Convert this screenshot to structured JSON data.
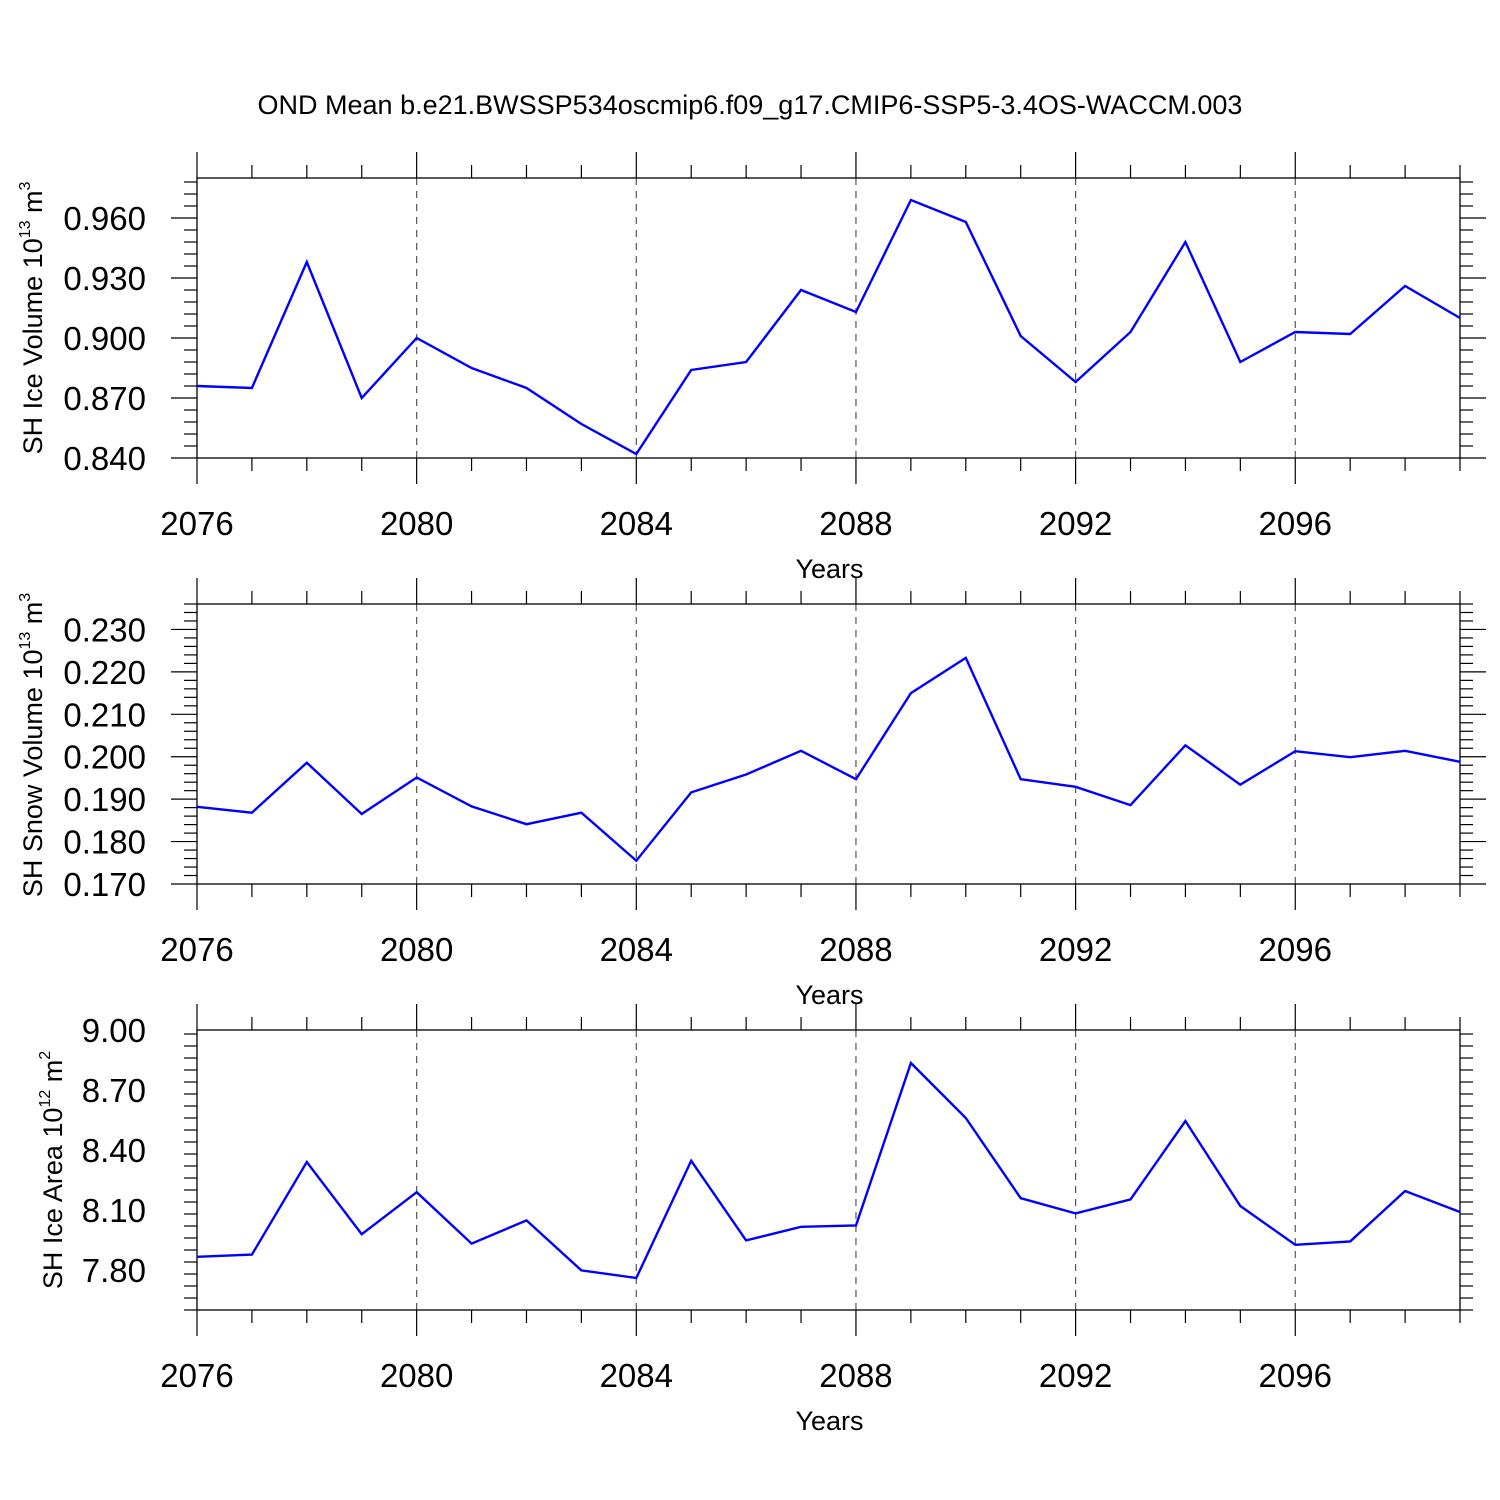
{
  "title": "OND Mean b.e21.BWSSP534oscmip6.f09_g17.CMIP6-SSP5-3.4OS-WACCM.003",
  "colors": {
    "line": "#0000ff",
    "axis": "#000000",
    "grid": "#555555"
  },
  "chart_data": [
    {
      "type": "line",
      "ylabel": {
        "prefix": "SH Ice Volume 10",
        "exp": "13",
        "unit": " m",
        "unit_exp": "3"
      },
      "xlabel": "Years",
      "xlim": [
        2076,
        2099
      ],
      "ylim": [
        0.84,
        0.98
      ],
      "xticks": [
        2076,
        2080,
        2084,
        2088,
        2092,
        2096
      ],
      "yticks": [
        0.84,
        0.87,
        0.9,
        0.93,
        0.96
      ],
      "ytick_labels": [
        "0.840",
        "0.870",
        "0.900",
        "0.930",
        "0.960"
      ],
      "x": [
        2076,
        2077,
        2078,
        2079,
        2080,
        2081,
        2082,
        2083,
        2084,
        2085,
        2086,
        2087,
        2088,
        2089,
        2090,
        2091,
        2092,
        2093,
        2094,
        2095,
        2096,
        2097,
        2098,
        2099
      ],
      "values": [
        0.876,
        0.875,
        0.938,
        0.87,
        0.9,
        0.885,
        0.875,
        0.857,
        0.842,
        0.884,
        0.888,
        0.924,
        0.913,
        0.969,
        0.958,
        0.901,
        0.878,
        0.903,
        0.948,
        0.888,
        0.903,
        0.902,
        0.926,
        0.91
      ]
    },
    {
      "type": "line",
      "ylabel": {
        "prefix": "SH Snow Volume 10",
        "exp": "13",
        "unit": " m",
        "unit_exp": "3"
      },
      "xlabel": "Years",
      "xlim": [
        2076,
        2099
      ],
      "ylim": [
        0.17,
        0.236
      ],
      "xticks": [
        2076,
        2080,
        2084,
        2088,
        2092,
        2096
      ],
      "yticks": [
        0.17,
        0.18,
        0.19,
        0.2,
        0.21,
        0.22,
        0.23
      ],
      "ytick_labels": [
        "0.170",
        "0.180",
        "0.190",
        "0.200",
        "0.210",
        "0.220",
        "0.230"
      ],
      "x": [
        2076,
        2077,
        2078,
        2079,
        2080,
        2081,
        2082,
        2083,
        2084,
        2085,
        2086,
        2087,
        2088,
        2089,
        2090,
        2091,
        2092,
        2093,
        2094,
        2095,
        2096,
        2097,
        2098,
        2099
      ],
      "values": [
        0.1882,
        0.1868,
        0.1986,
        0.1865,
        0.1951,
        0.1883,
        0.1841,
        0.1868,
        0.1755,
        0.1916,
        0.1958,
        0.2014,
        0.1947,
        0.215,
        0.2233,
        0.1947,
        0.1929,
        0.1886,
        0.2027,
        0.1934,
        0.2013,
        0.1999,
        0.2014,
        0.1988
      ]
    },
    {
      "type": "line",
      "ylabel": {
        "prefix": "SH Ice Area 10",
        "exp": "12",
        "unit": " m",
        "unit_exp": "2"
      },
      "xlabel": "Years",
      "xlim": [
        2076,
        2099
      ],
      "ylim": [
        7.6,
        9.0
      ],
      "xticks": [
        2076,
        2080,
        2084,
        2088,
        2092,
        2096
      ],
      "yticks": [
        7.8,
        8.1,
        8.4,
        8.7,
        9.0
      ],
      "ytick_labels": [
        "7.80",
        "8.10",
        "8.40",
        "8.70",
        "9.00"
      ],
      "x": [
        2076,
        2077,
        2078,
        2079,
        2080,
        2081,
        2082,
        2083,
        2084,
        2085,
        2086,
        2087,
        2088,
        2089,
        2090,
        2091,
        2092,
        2093,
        2094,
        2095,
        2096,
        2097,
        2098,
        2099
      ],
      "values": [
        7.866,
        7.877,
        8.34,
        7.979,
        8.189,
        7.932,
        8.048,
        7.798,
        7.76,
        8.346,
        7.948,
        8.016,
        8.023,
        8.835,
        8.56,
        8.159,
        8.083,
        8.153,
        8.545,
        8.12,
        7.926,
        7.943,
        8.195,
        8.09
      ]
    }
  ]
}
